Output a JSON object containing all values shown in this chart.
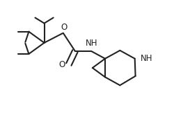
{
  "background_color": "#ffffff",
  "line_color": "#222222",
  "lw": 1.5,
  "font_size": 8.5,
  "figsize": [
    2.5,
    1.72
  ],
  "dpi": 100,
  "xlim": [
    -0.05,
    1.05
  ],
  "ylim": [
    0.18,
    1.02
  ]
}
